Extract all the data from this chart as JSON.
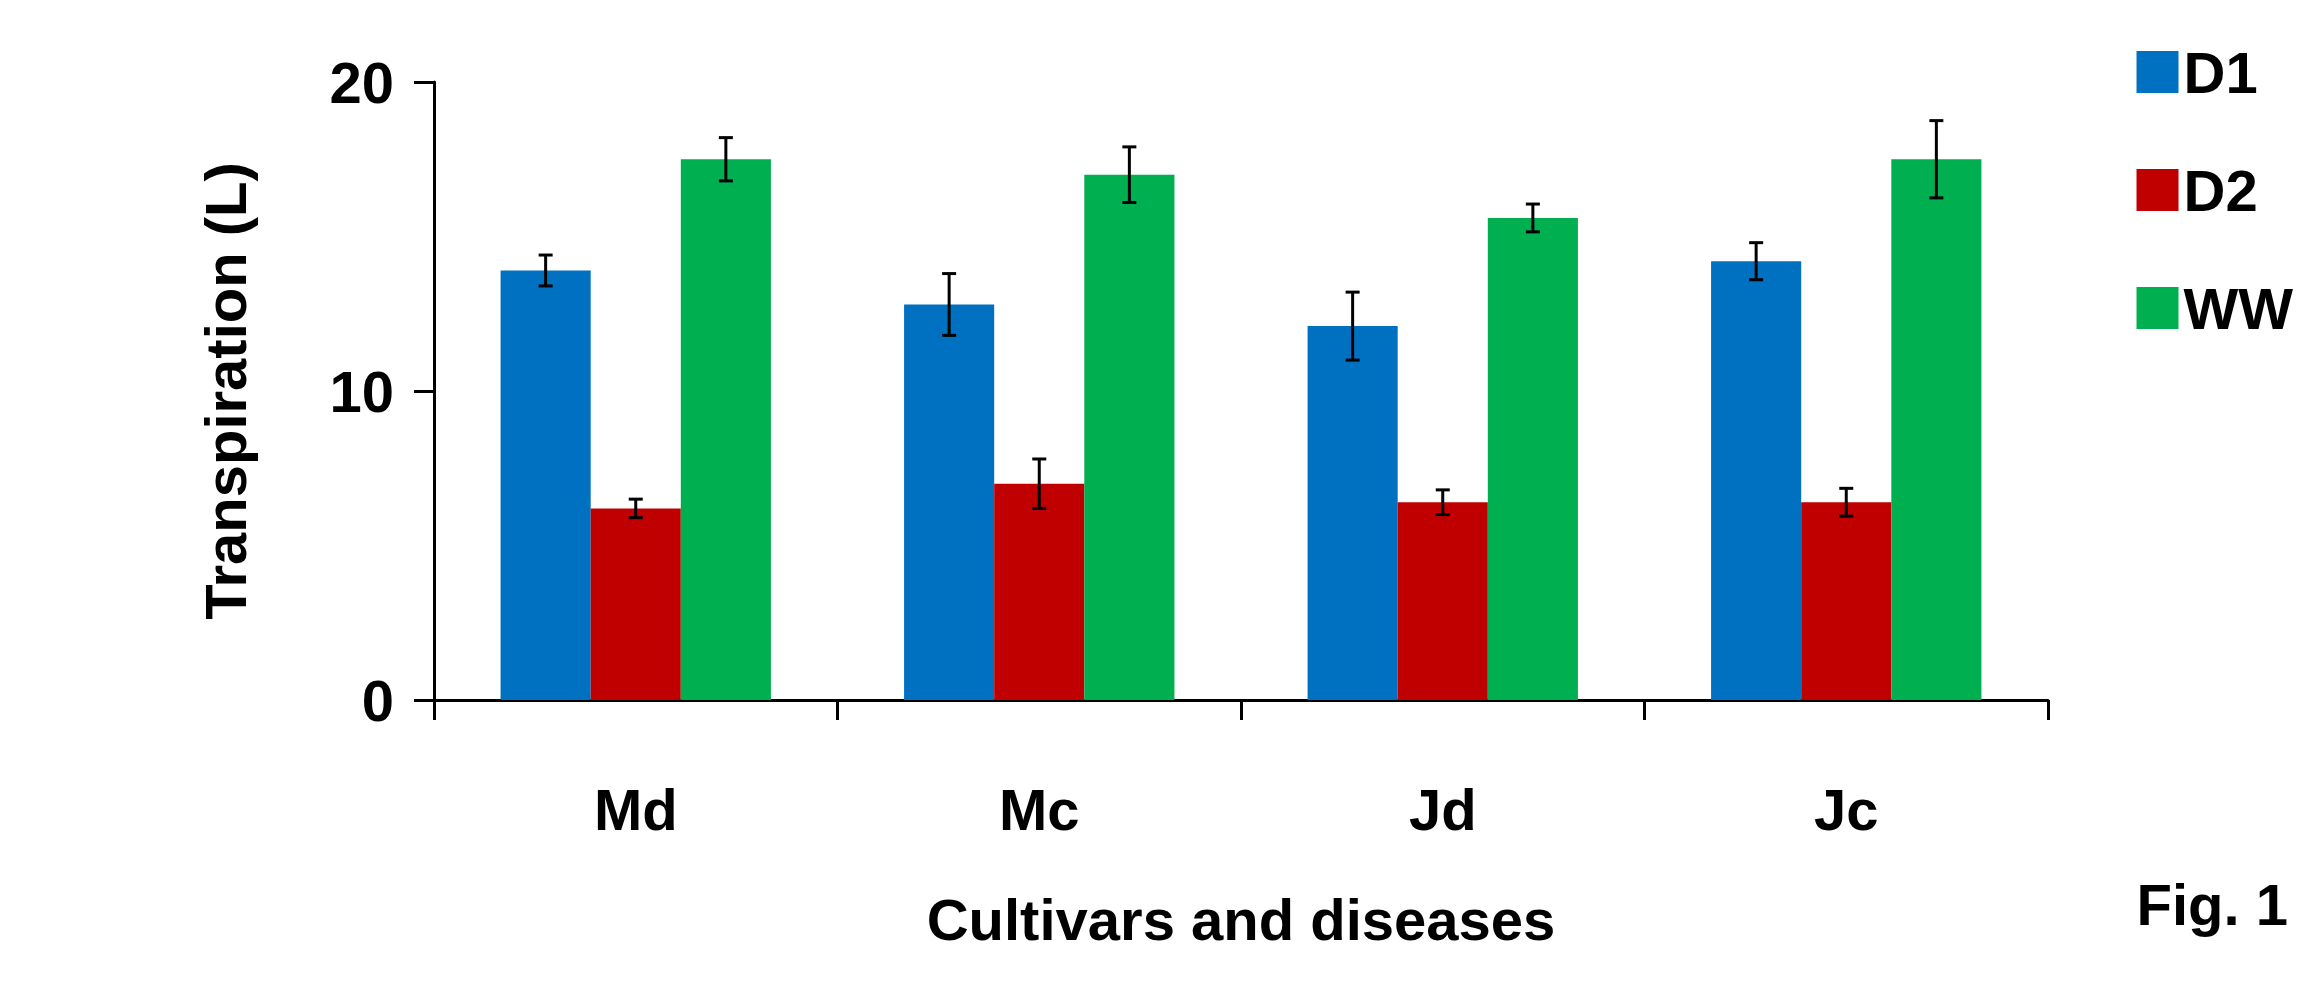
{
  "chart_data": {
    "type": "bar",
    "xlabel": "Cultivars and diseases",
    "ylabel": "Transpiration (L)",
    "categories": [
      "Md",
      "Mc",
      "Jd",
      "Jc"
    ],
    "series": [
      {
        "name": "D1",
        "color": "#0070c0",
        "values": [
          13.9,
          12.8,
          12.1,
          14.2
        ],
        "errors": [
          0.5,
          1.0,
          1.1,
          0.6
        ]
      },
      {
        "name": "D2",
        "color": "#c00000",
        "values": [
          6.2,
          7.0,
          6.4,
          6.4
        ],
        "errors": [
          0.3,
          0.8,
          0.4,
          0.45
        ]
      },
      {
        "name": "WW",
        "color": "#00b050",
        "values": [
          17.5,
          17.0,
          15.6,
          17.5
        ],
        "errors": [
          0.7,
          0.9,
          0.45,
          1.25
        ]
      }
    ],
    "ylim": [
      0,
      20
    ],
    "yticks": [
      0,
      10,
      20
    ],
    "grid": false,
    "legend": "top right",
    "annotations": [
      "Fig. 1"
    ]
  }
}
